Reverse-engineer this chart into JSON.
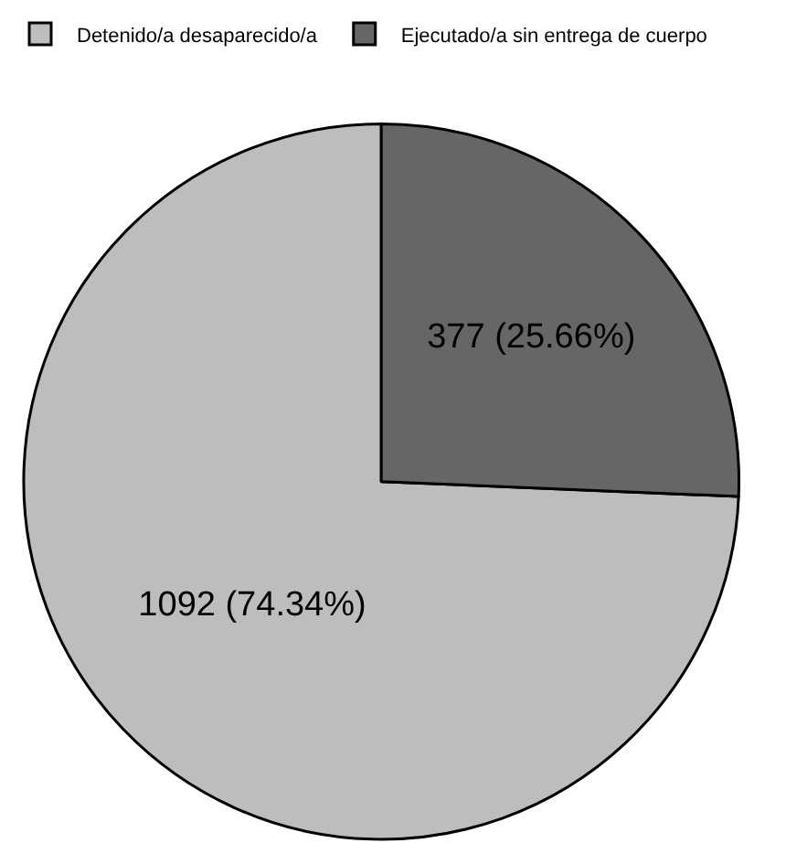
{
  "chart_data": {
    "type": "pie",
    "categories": [
      "Detenido/a desaparecido/a",
      "Ejecutado/a sin entrega de cuerpo"
    ],
    "values": [
      1092,
      377
    ],
    "colors": [
      "#bdbdbd",
      "#666666"
    ],
    "value_labels": [
      "1092 (74.34%)",
      "377 (25.66%)"
    ],
    "legend": "top left"
  }
}
